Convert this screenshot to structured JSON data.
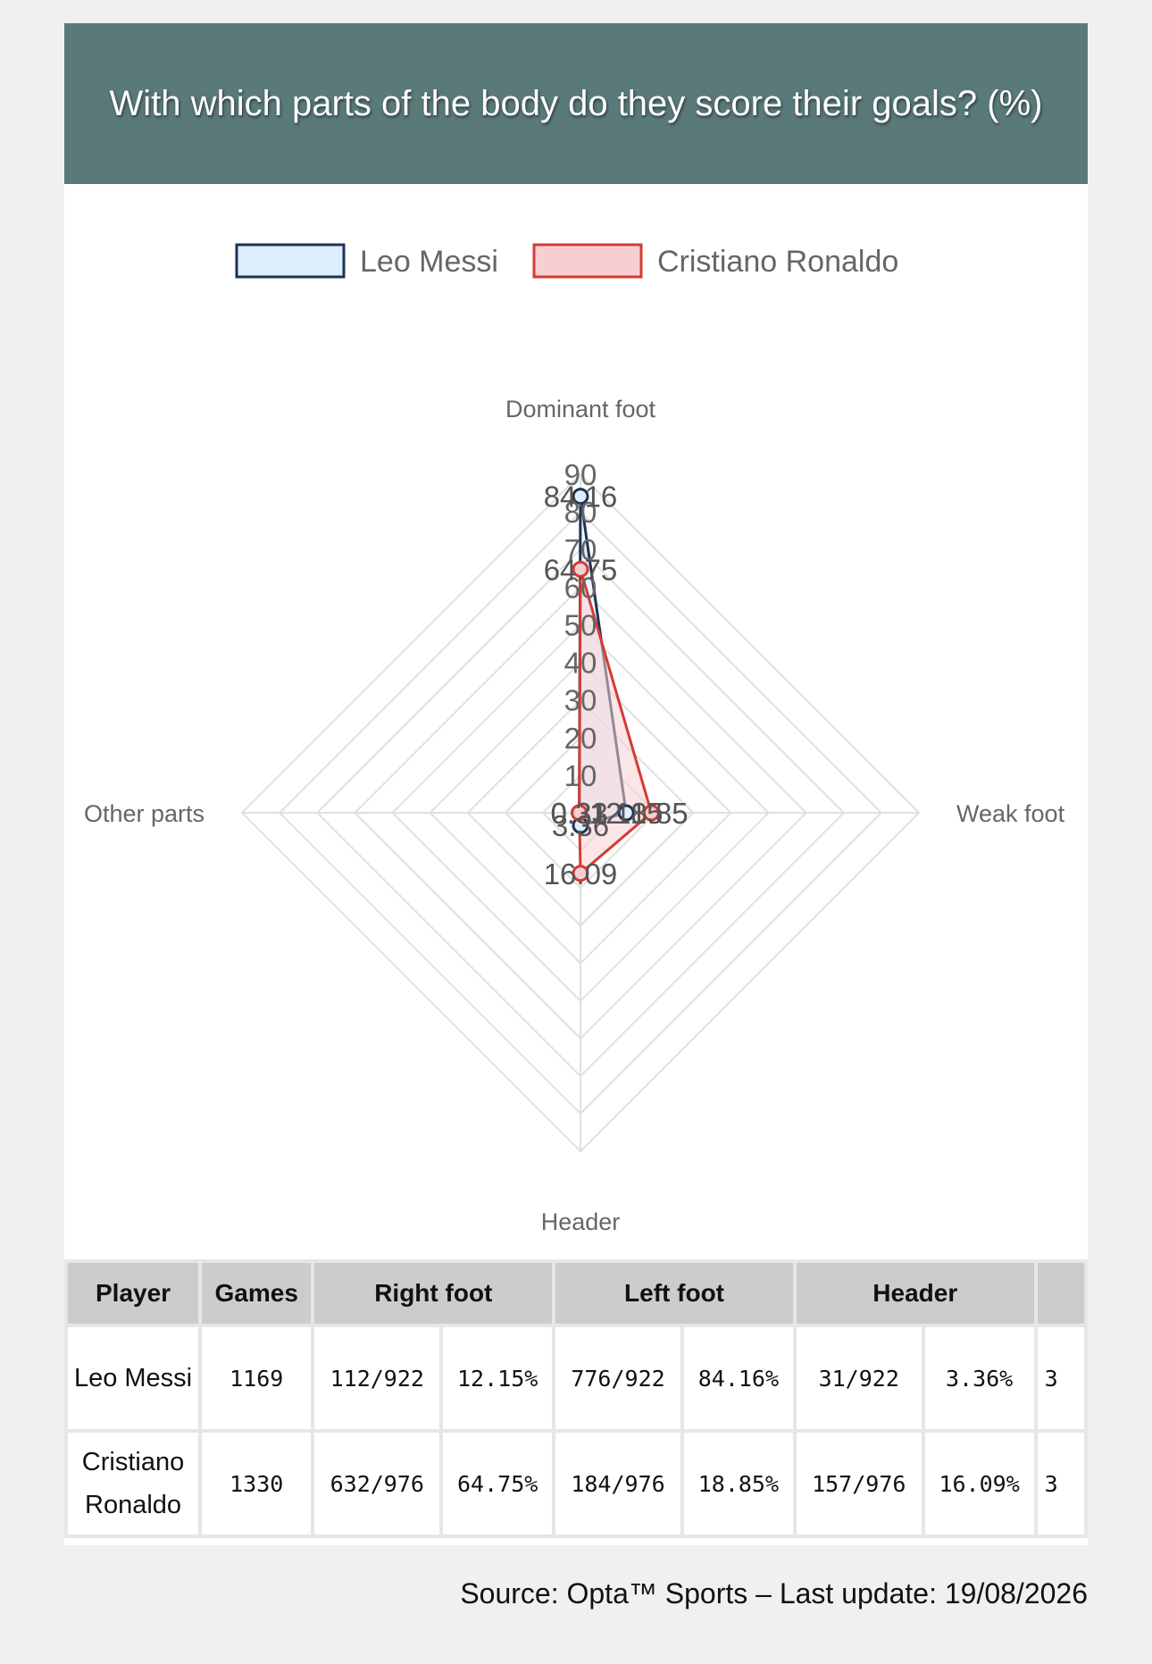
{
  "header": {
    "title": "With which parts of the body do they score their goals? (%)"
  },
  "chart_data": {
    "type": "radar",
    "title": "With which parts of the body do they score their goals? (%)",
    "axes": [
      "Dominant foot",
      "Weak foot",
      "Header",
      "Other parts"
    ],
    "r_ticks": [
      10,
      20,
      30,
      40,
      50,
      60,
      70,
      80,
      90
    ],
    "r_max": 90,
    "grid": true,
    "legend_position": "top",
    "series": [
      {
        "name": "Leo Messi",
        "values": [
          84.16,
          12.15,
          3.36,
          0.33
        ],
        "labels": [
          "84.16",
          "12.15",
          "3.36",
          "0.33"
        ],
        "stroke": "#1f3350",
        "fill": "#dcefff"
      },
      {
        "name": "Cristiano Ronaldo",
        "values": [
          64.75,
          18.85,
          16.09,
          0.31
        ],
        "labels": [
          "64.75",
          "18.85",
          "16.09",
          "0.31"
        ],
        "stroke": "#d23c36",
        "fill": "#f7cfd1"
      }
    ]
  },
  "table": {
    "headers": {
      "player": "Player",
      "games": "Games",
      "right_foot": "Right foot",
      "left_foot": "Left foot",
      "header": "Header"
    },
    "rows": [
      {
        "player": "Leo Messi",
        "games": "1169",
        "rf_count": "112/922",
        "rf_pct": "12.15%",
        "lf_count": "776/922",
        "lf_pct": "84.16%",
        "h_count": "31/922",
        "h_pct": "3.36%",
        "extra": "3"
      },
      {
        "player": "Cristiano Ronaldo",
        "games": "1330",
        "rf_count": "632/976",
        "rf_pct": "64.75%",
        "lf_count": "184/976",
        "lf_pct": "18.85%",
        "h_count": "157/976",
        "h_pct": "16.09%",
        "extra": "3"
      }
    ]
  },
  "footer": {
    "source": "Source: Opta™ Sports – Last update: 19/08/2026"
  }
}
